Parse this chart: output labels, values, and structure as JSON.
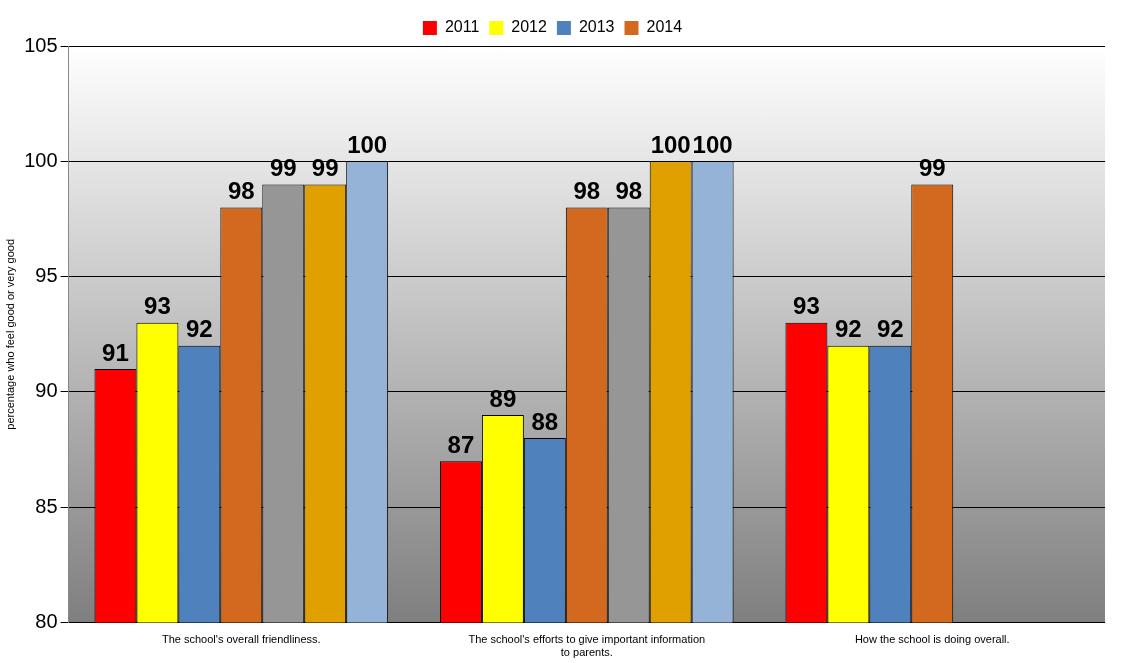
{
  "chart_data": {
    "type": "bar",
    "categories": [
      "The school's overall friendliness.",
      "The school's efforts to give important information to parents.",
      "How the school is doing overall."
    ],
    "series": [
      {
        "name": "2011",
        "color": "#ff0000",
        "values": [
          91,
          87,
          93
        ]
      },
      {
        "name": "2012",
        "color": "#ffff00",
        "values": [
          93,
          89,
          92
        ]
      },
      {
        "name": "2013",
        "color": "#4f81bd",
        "values": [
          92,
          88,
          92
        ]
      },
      {
        "name": "2014",
        "color": "#d2691e",
        "values": [
          98,
          98,
          99
        ]
      },
      {
        "color": "#969696",
        "values": [
          99,
          98,
          null
        ]
      },
      {
        "color": "#e0a000",
        "values": [
          99,
          100,
          null
        ]
      },
      {
        "color": "#95b3d7",
        "values": [
          100,
          100,
          null
        ]
      }
    ],
    "ylabel": "percentage who feel good or very good",
    "ylim": [
      80,
      105
    ],
    "yticks": [
      80,
      85,
      90,
      95,
      100,
      105
    ],
    "grid": "y",
    "legend": "top",
    "data_labels": true
  }
}
